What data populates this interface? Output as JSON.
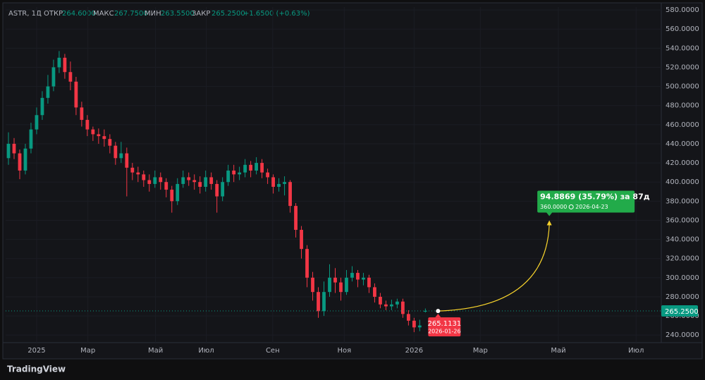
{
  "header": {
    "symbol": "ASTR, 1Д",
    "open_label": "ОТКР",
    "open": "264.6000",
    "high_label": "МАКС",
    "high": "267.7500",
    "low_label": "МИН",
    "low": "263.5500",
    "close_label": "ЗАКР",
    "close": "265.2500",
    "change": "+1.6500 (+0.63%)"
  },
  "chart_data": {
    "type": "candlestick",
    "colors": {
      "up": "#089981",
      "down": "#f23645"
    },
    "candles": [
      [
        425,
        452,
        418,
        440
      ],
      [
        440,
        446,
        424,
        430
      ],
      [
        430,
        434,
        403,
        412
      ],
      [
        412,
        440,
        408,
        435
      ],
      [
        435,
        462,
        430,
        455
      ],
      [
        455,
        478,
        450,
        470
      ],
      [
        470,
        495,
        465,
        488
      ],
      [
        488,
        512,
        482,
        500
      ],
      [
        500,
        528,
        495,
        520
      ],
      [
        520,
        537,
        514,
        530
      ],
      [
        530,
        534,
        508,
        515
      ],
      [
        515,
        526,
        496,
        505
      ],
      [
        505,
        510,
        470,
        478
      ],
      [
        478,
        484,
        458,
        465
      ],
      [
        465,
        470,
        448,
        455
      ],
      [
        455,
        458,
        443,
        450
      ],
      [
        450,
        456,
        440,
        448
      ],
      [
        448,
        455,
        437,
        445
      ],
      [
        445,
        450,
        430,
        438
      ],
      [
        438,
        442,
        418,
        425
      ],
      [
        425,
        442,
        420,
        430
      ],
      [
        430,
        436,
        385,
        415
      ],
      [
        415,
        420,
        402,
        410
      ],
      [
        410,
        416,
        400,
        408
      ],
      [
        408,
        412,
        395,
        402
      ],
      [
        402,
        408,
        390,
        398
      ],
      [
        398,
        412,
        394,
        405
      ],
      [
        405,
        410,
        392,
        400
      ],
      [
        400,
        404,
        384,
        392
      ],
      [
        392,
        396,
        368,
        380
      ],
      [
        380,
        404,
        376,
        398
      ],
      [
        398,
        412,
        394,
        405
      ],
      [
        405,
        410,
        396,
        402
      ],
      [
        402,
        408,
        392,
        400
      ],
      [
        400,
        406,
        388,
        395
      ],
      [
        395,
        412,
        390,
        405
      ],
      [
        405,
        410,
        392,
        398
      ],
      [
        398,
        402,
        368,
        385
      ],
      [
        385,
        405,
        380,
        400
      ],
      [
        400,
        418,
        396,
        412
      ],
      [
        412,
        418,
        400,
        408
      ],
      [
        408,
        416,
        402,
        410
      ],
      [
        410,
        424,
        405,
        418
      ],
      [
        418,
        422,
        405,
        412
      ],
      [
        412,
        426,
        408,
        420
      ],
      [
        420,
        424,
        404,
        410
      ],
      [
        410,
        414,
        398,
        405
      ],
      [
        405,
        408,
        388,
        395
      ],
      [
        395,
        404,
        390,
        398
      ],
      [
        398,
        406,
        386,
        400
      ],
      [
        400,
        402,
        368,
        375
      ],
      [
        375,
        378,
        342,
        350
      ],
      [
        350,
        354,
        320,
        330
      ],
      [
        330,
        334,
        290,
        300
      ],
      [
        300,
        306,
        276,
        285
      ],
      [
        285,
        290,
        258,
        265
      ],
      [
        265,
        296,
        260,
        285
      ],
      [
        285,
        314,
        280,
        300
      ],
      [
        300,
        310,
        284,
        295
      ],
      [
        295,
        300,
        276,
        285
      ],
      [
        285,
        308,
        282,
        300
      ],
      [
        300,
        312,
        296,
        305
      ],
      [
        305,
        308,
        290,
        298
      ],
      [
        298,
        305,
        292,
        300
      ],
      [
        300,
        303,
        284,
        290
      ],
      [
        290,
        294,
        274,
        280
      ],
      [
        280,
        284,
        268,
        272
      ],
      [
        272,
        276,
        266,
        270
      ],
      [
        270,
        277,
        266,
        272
      ],
      [
        272,
        278,
        268,
        275
      ],
      [
        275,
        278,
        258,
        262
      ],
      [
        262,
        266,
        250,
        255
      ],
      [
        255,
        258,
        243,
        248
      ],
      [
        248,
        256,
        244,
        250
      ],
      [
        264.6,
        267.75,
        263.55,
        265.25
      ]
    ],
    "xlim": [
      0,
      116
    ],
    "xticks": [
      {
        "value": 5.5,
        "label": "2025"
      },
      {
        "value": 14.6,
        "label": "Мар"
      },
      {
        "value": 26.6,
        "label": "Май"
      },
      {
        "value": 35.6,
        "label": "Июл"
      },
      {
        "value": 47.4,
        "label": "Сен"
      },
      {
        "value": 60.1,
        "label": "Ноя"
      },
      {
        "value": 72.5,
        "label": "2026"
      },
      {
        "value": 84.25,
        "label": "Мар"
      },
      {
        "value": 98.1,
        "label": "Май"
      },
      {
        "value": 111.9,
        "label": "Июл"
      }
    ],
    "ylim": [
      235,
      583
    ],
    "yticks": [
      {
        "value": 240,
        "label": "240.0000"
      },
      {
        "value": 260,
        "label": "260.0000"
      },
      {
        "value": 280,
        "label": "280.0000"
      },
      {
        "value": 300,
        "label": "300.0000"
      },
      {
        "value": 320,
        "label": "320.0000"
      },
      {
        "value": 340,
        "label": "340.0000"
      },
      {
        "value": 360,
        "label": "360.0000"
      },
      {
        "value": 380,
        "label": "380.0000"
      },
      {
        "value": 400,
        "label": "400.0000"
      },
      {
        "value": 420,
        "label": "420.0000"
      },
      {
        "value": 440,
        "label": "440.0000"
      },
      {
        "value": 460,
        "label": "460.0000"
      },
      {
        "value": 480,
        "label": "480.0000"
      },
      {
        "value": 500,
        "label": "500.0000"
      },
      {
        "value": 520,
        "label": "520.0000"
      },
      {
        "value": 540,
        "label": "540.0000"
      },
      {
        "value": 560,
        "label": "560.0000"
      },
      {
        "value": 580,
        "label": "580.0000"
      }
    ],
    "last_price": {
      "value": 265.25,
      "label": "265.2500"
    },
    "projection": {
      "start": {
        "x": 76.75,
        "value": 265.1131,
        "label": "265.1131",
        "date": "2026-01-26"
      },
      "end": {
        "x": 96.5,
        "value": 360,
        "label": "360.0000",
        "date": "2026-04-23"
      },
      "change": "94.8869 (35.79%) за 87д"
    }
  },
  "footer": {
    "brand": "TradingView"
  }
}
